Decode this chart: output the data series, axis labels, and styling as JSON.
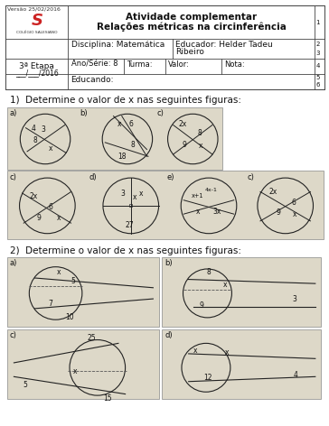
{
  "page_bg": "#ffffff",
  "panel_bg": "#ddd8c8",
  "header_bg": "#ffffff",
  "q1": "1)  Determine o valor de x nas seguintes figuras:",
  "q2": "2)  Determine o valor de x nas seguintes figuras:",
  "version": "Versão 25/02/2016",
  "title1": "Atividade complementar",
  "title2": "Relações métricas na circinferência",
  "disciplina": "Disciplina: Matemática",
  "educador": "Educador: Helder Tadeu",
  "educador2": "Ribeiro",
  "ano": "Ano/Série: 8",
  "turma": "Turma:",
  "valor": "Valor:",
  "nota": "Nota:",
  "etapa": "3ª Etapa",
  "etapa2": "___/___/2016",
  "educando": "Educando:",
  "nums": [
    "1",
    "2",
    "3",
    "4",
    "5",
    "6"
  ],
  "line_color": "#444444",
  "text_color": "#111111",
  "circle_color": "#222222"
}
